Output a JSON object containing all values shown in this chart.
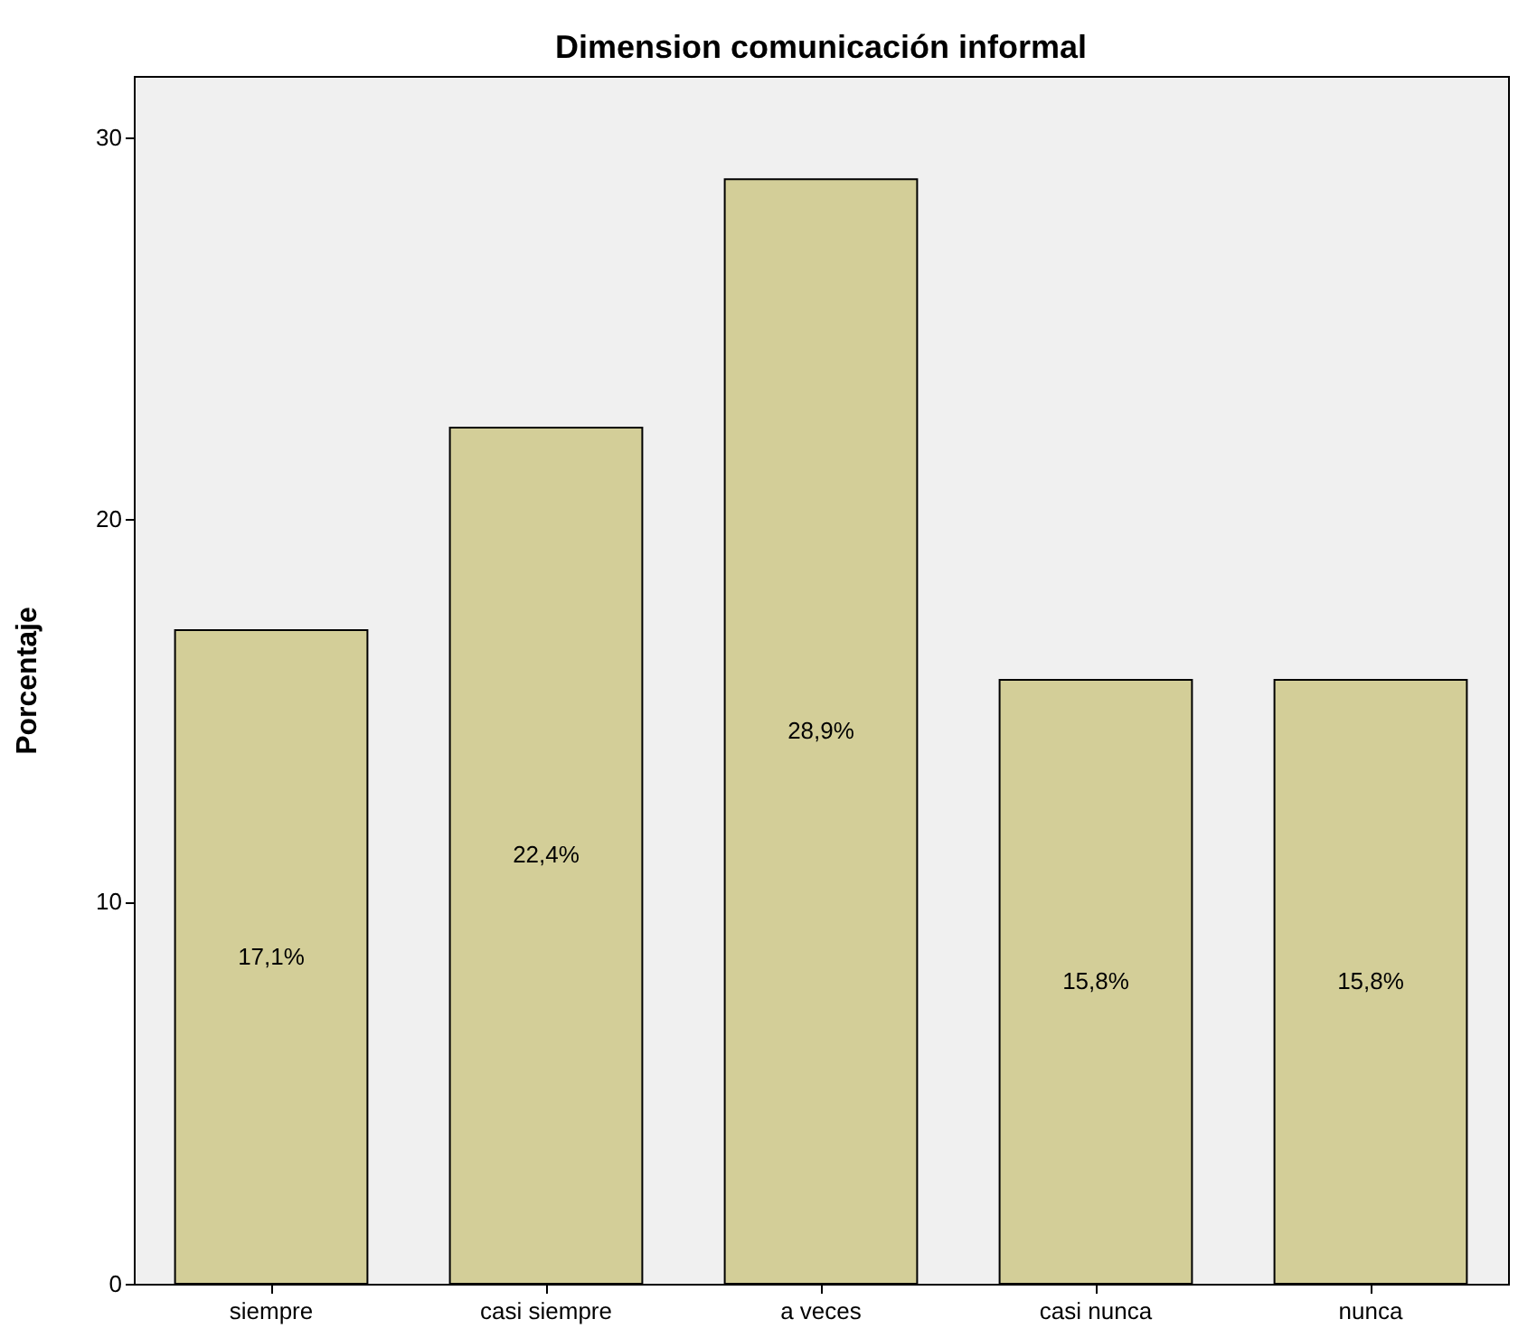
{
  "chart_data": {
    "type": "bar",
    "title": "Dimension comunicación informal",
    "ylabel": "Porcentaje",
    "categories": [
      "siempre",
      "casi siempre",
      "a veces",
      "casi nunca",
      "nunca"
    ],
    "values": [
      17.1,
      22.4,
      28.9,
      15.8,
      15.8
    ],
    "value_labels": [
      "17,1%",
      "22,4%",
      "28,9%",
      "15,8%",
      "15,8%"
    ],
    "color": "#d3ce98",
    "ylim": [
      0,
      31.6
    ],
    "yticks": [
      0,
      10,
      20,
      30
    ],
    "grid": false
  }
}
